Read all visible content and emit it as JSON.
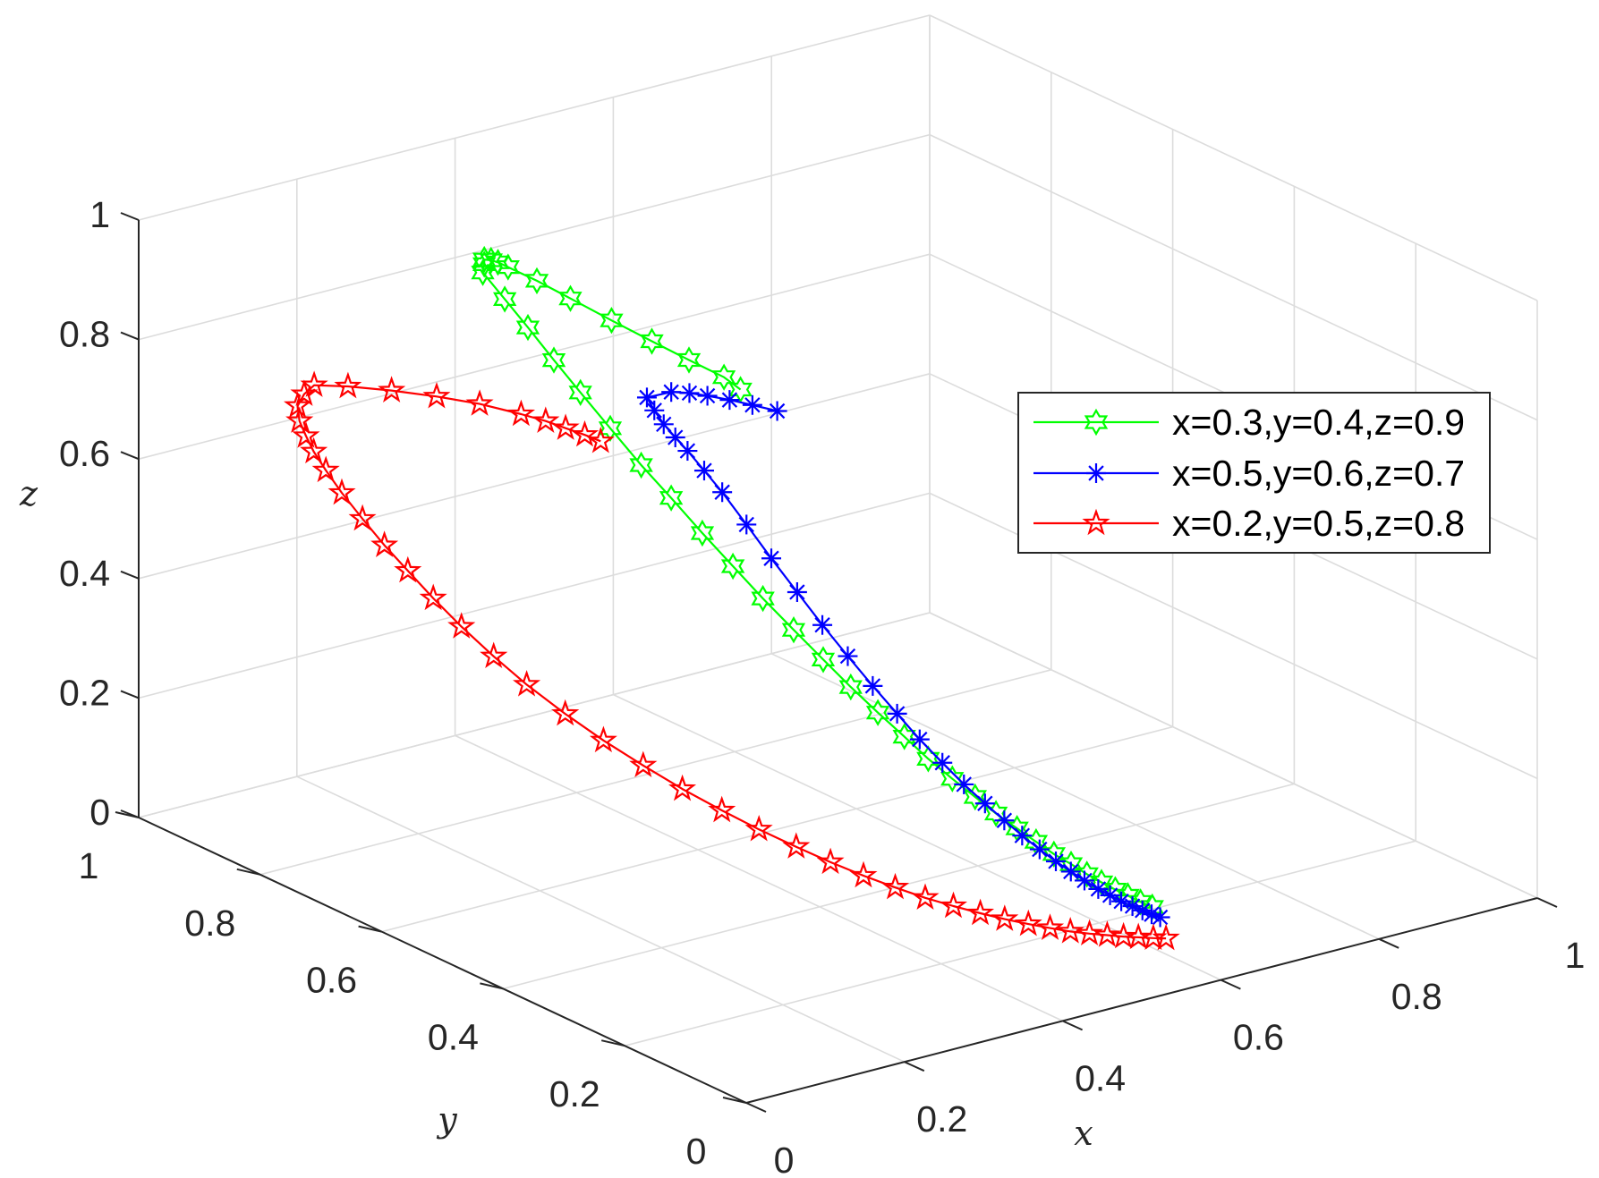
{
  "chart_data": {
    "type": "line3d",
    "title": "",
    "xlabel": "x",
    "ylabel": "y",
    "zlabel": "z",
    "xlim": [
      0,
      1
    ],
    "ylim": [
      0,
      1
    ],
    "zlim": [
      0,
      1
    ],
    "xticks": [
      "0",
      "0.2",
      "0.4",
      "0.6",
      "0.8",
      "1"
    ],
    "yticks": [
      "0",
      "0.2",
      "0.4",
      "0.6",
      "0.8",
      "1"
    ],
    "zticks": [
      "0",
      "0.2",
      "0.4",
      "0.6",
      "0.8",
      "1"
    ],
    "grid": true,
    "legend_position": "right",
    "series": [
      {
        "name": "x=0.3,y=0.4,z=0.9",
        "color": "#00ff00",
        "marker": "hexagram",
        "x": [
          0.3,
          0.309,
          0.304,
          0.297,
          0.289,
          0.28,
          0.273,
          0.268,
          0.266,
          0.265,
          0.264,
          0.264,
          0.263,
          0.27,
          0.277,
          0.286,
          0.295,
          0.305,
          0.315,
          0.326,
          0.337,
          0.348,
          0.359,
          0.371,
          0.383,
          0.394,
          0.406,
          0.418,
          0.429,
          0.441,
          0.453,
          0.464,
          0.476,
          0.487,
          0.498,
          0.509,
          0.519,
          0.529,
          0.538,
          0.547,
          0.556,
          0.564
        ],
        "y": [
          0.4,
          0.439,
          0.49,
          0.542,
          0.598,
          0.654,
          0.7,
          0.741,
          0.755,
          0.765,
          0.775,
          0.775,
          0.776,
          0.749,
          0.72,
          0.689,
          0.657,
          0.621,
          0.583,
          0.548,
          0.511,
          0.475,
          0.44,
          0.405,
          0.372,
          0.341,
          0.312,
          0.284,
          0.259,
          0.235,
          0.213,
          0.193,
          0.174,
          0.157,
          0.142,
          0.128,
          0.115,
          0.104,
          0.093,
          0.084,
          0.075,
          0.066
        ],
        "z": [
          0.9,
          0.899,
          0.905,
          0.914,
          0.925,
          0.938,
          0.948,
          0.953,
          0.955,
          0.954,
          0.951,
          0.943,
          0.929,
          0.895,
          0.859,
          0.816,
          0.774,
          0.728,
          0.681,
          0.639,
          0.594,
          0.552,
          0.511,
          0.471,
          0.433,
          0.398,
          0.365,
          0.334,
          0.305,
          0.279,
          0.255,
          0.233,
          0.213,
          0.195,
          0.178,
          0.164,
          0.15,
          0.138,
          0.128,
          0.119,
          0.11,
          0.103
        ]
      },
      {
        "name": "x=0.5,y=0.6,z=0.7",
        "color": "#0000ff",
        "marker": "asterisk",
        "x": [
          0.5,
          0.484,
          0.469,
          0.454,
          0.442,
          0.429,
          0.409,
          0.403,
          0.398,
          0.395,
          0.392,
          0.39,
          0.389,
          0.392,
          0.395,
          0.4,
          0.405,
          0.411,
          0.418,
          0.425,
          0.432,
          0.44,
          0.448,
          0.457,
          0.466,
          0.474,
          0.483,
          0.492,
          0.501,
          0.509,
          0.518,
          0.526,
          0.534,
          0.542,
          0.55,
          0.557,
          0.564
        ],
        "y": [
          0.6,
          0.62,
          0.638,
          0.655,
          0.669,
          0.682,
          0.696,
          0.676,
          0.654,
          0.631,
          0.607,
          0.577,
          0.546,
          0.51,
          0.473,
          0.437,
          0.402,
          0.368,
          0.336,
          0.305,
          0.277,
          0.25,
          0.225,
          0.202,
          0.182,
          0.163,
          0.146,
          0.131,
          0.118,
          0.106,
          0.095,
          0.086,
          0.078,
          0.07,
          0.064,
          0.058,
          0.053
        ],
        "z": [
          0.7,
          0.706,
          0.711,
          0.715,
          0.717,
          0.717,
          0.708,
          0.698,
          0.687,
          0.677,
          0.667,
          0.649,
          0.628,
          0.59,
          0.55,
          0.509,
          0.469,
          0.431,
          0.394,
          0.36,
          0.328,
          0.299,
          0.272,
          0.248,
          0.226,
          0.207,
          0.189,
          0.173,
          0.159,
          0.147,
          0.135,
          0.126,
          0.117,
          0.11,
          0.103,
          0.097,
          0.092
        ]
      },
      {
        "name": "x=0.2,y=0.5,z=0.8",
        "color": "#ff0000",
        "marker": "pentagram",
        "x": [
          0.2,
          0.196,
          0.191,
          0.185,
          0.177,
          0.163,
          0.147,
          0.13,
          0.114,
          0.102,
          0.094,
          0.088,
          0.085,
          0.084,
          0.083,
          0.083,
          0.084,
          0.087,
          0.091,
          0.096,
          0.102,
          0.11,
          0.12,
          0.131,
          0.146,
          0.162,
          0.18,
          0.198,
          0.218,
          0.238,
          0.259,
          0.28,
          0.301,
          0.322,
          0.343,
          0.364,
          0.385,
          0.405,
          0.425,
          0.444,
          0.462,
          0.48,
          0.497,
          0.513,
          0.528,
          0.543,
          0.556
        ],
        "y": [
          0.5,
          0.521,
          0.546,
          0.571,
          0.601,
          0.651,
          0.701,
          0.753,
          0.804,
          0.844,
          0.85,
          0.853,
          0.846,
          0.834,
          0.82,
          0.8,
          0.775,
          0.745,
          0.714,
          0.682,
          0.648,
          0.612,
          0.572,
          0.532,
          0.488,
          0.446,
          0.404,
          0.363,
          0.324,
          0.289,
          0.255,
          0.226,
          0.199,
          0.174,
          0.152,
          0.133,
          0.116,
          0.102,
          0.089,
          0.078,
          0.068,
          0.06,
          0.053,
          0.047,
          0.042,
          0.037,
          0.033
        ],
        "z": [
          0.8,
          0.802,
          0.803,
          0.805,
          0.805,
          0.803,
          0.797,
          0.788,
          0.776,
          0.763,
          0.748,
          0.729,
          0.708,
          0.689,
          0.67,
          0.648,
          0.622,
          0.592,
          0.561,
          0.532,
          0.5,
          0.467,
          0.433,
          0.401,
          0.368,
          0.338,
          0.31,
          0.284,
          0.26,
          0.238,
          0.218,
          0.199,
          0.182,
          0.167,
          0.153,
          0.141,
          0.13,
          0.12,
          0.111,
          0.103,
          0.096,
          0.09,
          0.085,
          0.08,
          0.076,
          0.072,
          0.069
        ]
      }
    ]
  }
}
